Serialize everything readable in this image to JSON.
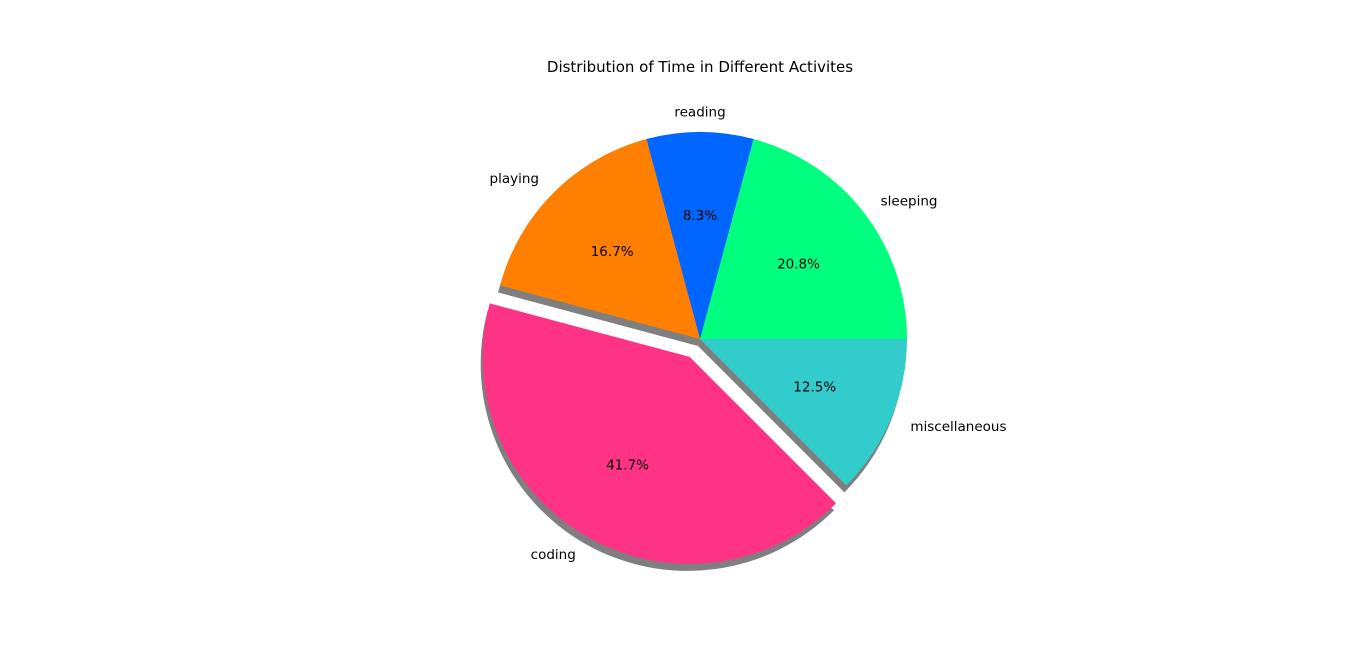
{
  "chart_data": {
    "type": "pie",
    "title": "Distribution of Time in Different Activites",
    "slices": [
      {
        "label": "sleeping",
        "value": 5,
        "percent": "20.8%",
        "color": "#00FF7F",
        "explode": 0
      },
      {
        "label": "reading",
        "value": 2,
        "percent": "8.3%",
        "color": "#0066FF",
        "explode": 0
      },
      {
        "label": "playing",
        "value": 4,
        "percent": "16.7%",
        "color": "#FF8000",
        "explode": 0
      },
      {
        "label": "coding",
        "value": 10,
        "percent": "41.7%",
        "color": "#FF3386",
        "explode": 0.1
      },
      {
        "label": "miscellaneous",
        "value": 3,
        "percent": "12.5%",
        "color": "#33CCCC",
        "explode": 0
      }
    ],
    "start_angle": 0,
    "direction": "counterclockwise",
    "shadow": true
  }
}
